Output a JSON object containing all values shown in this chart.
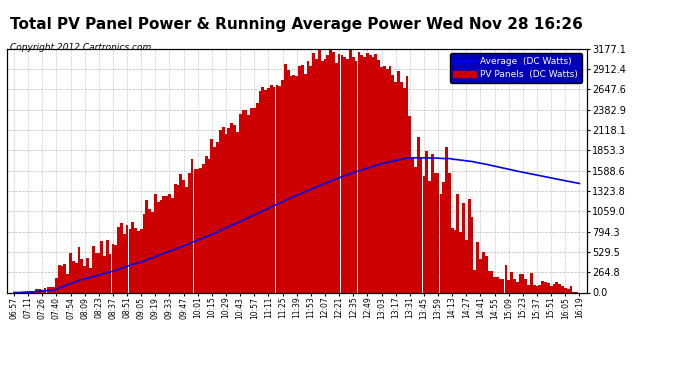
{
  "title": "Total PV Panel Power & Running Average Power Wed Nov 28 16:26",
  "copyright": "Copyright 2012 Cartronics.com",
  "ylabel_values": [
    0.0,
    264.8,
    529.5,
    794.3,
    1059.0,
    1323.8,
    1588.6,
    1853.3,
    2118.1,
    2382.9,
    2647.6,
    2912.4,
    3177.1
  ],
  "ymax": 3177.1,
  "ymin": 0.0,
  "background_color": "#ffffff",
  "plot_bg_color": "#ffffff",
  "grid_color": "#bbbbbb",
  "bar_color": "#cc0000",
  "line_color": "#0000ee",
  "title_fontsize": 11,
  "tick_labels": [
    "06:57",
    "07:11",
    "07:26",
    "07:40",
    "07:54",
    "08:09",
    "08:23",
    "08:37",
    "08:51",
    "09:05",
    "09:19",
    "09:33",
    "09:47",
    "10:01",
    "10:15",
    "10:29",
    "10:43",
    "10:57",
    "11:11",
    "11:25",
    "11:39",
    "11:53",
    "12:07",
    "12:21",
    "12:35",
    "12:49",
    "13:03",
    "13:17",
    "13:31",
    "13:45",
    "13:59",
    "14:13",
    "14:27",
    "14:41",
    "14:55",
    "15:09",
    "15:23",
    "15:37",
    "15:51",
    "16:05",
    "16:19"
  ],
  "legend_labels": [
    "Average  (DC Watts)",
    "PV Panels  (DC Watts)"
  ],
  "legend_line_color": "#0000ee",
  "legend_bar_color": "#cc0000",
  "legend_bg": "#0000bb"
}
